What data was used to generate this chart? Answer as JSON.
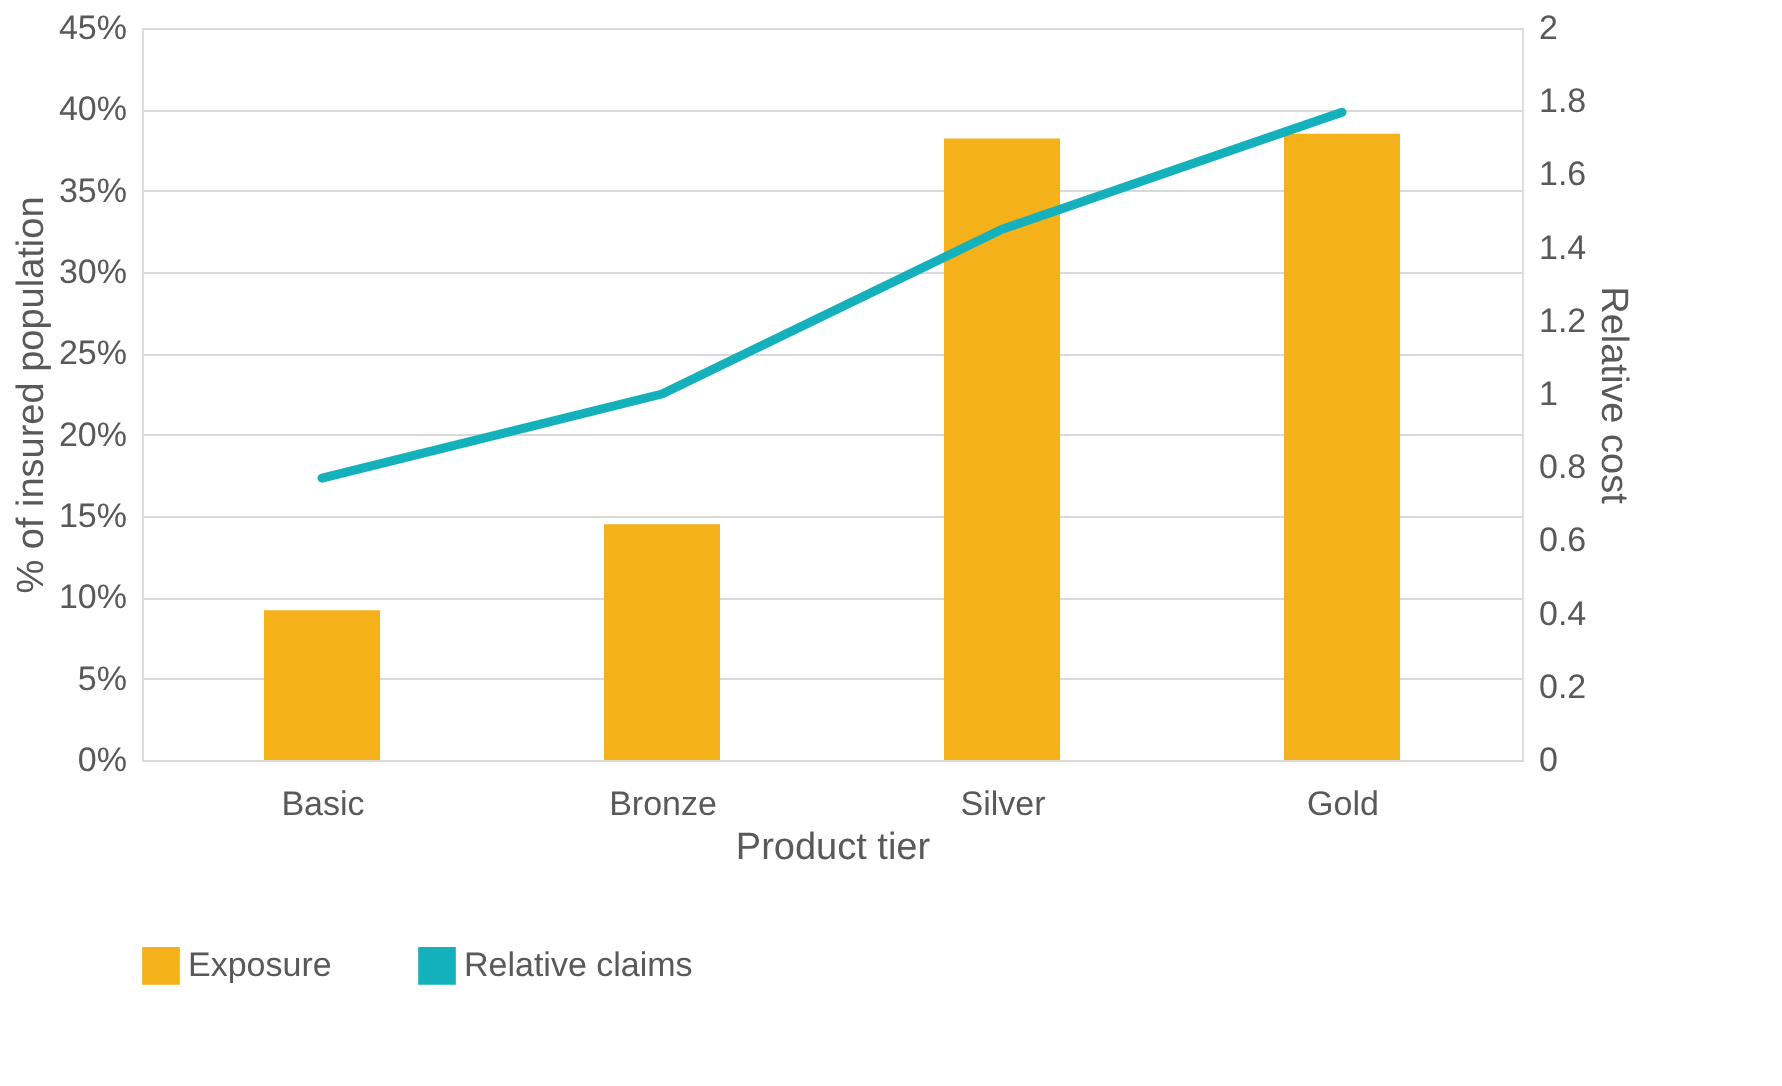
{
  "chart_data": {
    "type": "bar",
    "xlabel": "Product tier",
    "ylabel": "% of insured population",
    "y2label": "Relative cost",
    "categories": [
      "Basic",
      "Bronze",
      "Silver",
      "Gold"
    ],
    "series": [
      {
        "name": "Exposure",
        "color": "#f5b11a",
        "values": [
          9.2,
          14.5,
          38.2,
          38.5
        ]
      },
      {
        "name": "Relative claims",
        "type": "line",
        "axis": "y2",
        "color": "#14b1bd",
        "values": [
          0.77,
          1.0,
          1.45,
          1.77
        ]
      }
    ],
    "ylim": [
      0,
      45
    ],
    "yticks": [
      {
        "value": 0,
        "label": "0%"
      },
      {
        "value": 5,
        "label": "5%"
      },
      {
        "value": 10,
        "label": "10%"
      },
      {
        "value": 15,
        "label": "15%"
      },
      {
        "value": 20,
        "label": "20%"
      },
      {
        "value": 25,
        "label": "25%"
      },
      {
        "value": 30,
        "label": "30%"
      },
      {
        "value": 35,
        "label": "35%"
      },
      {
        "value": 40,
        "label": "40%"
      },
      {
        "value": 45,
        "label": "45%"
      }
    ],
    "y2lim": [
      0,
      2
    ],
    "y2ticks": [
      0,
      0.2,
      0.4,
      0.6,
      0.8,
      1,
      1.2,
      1.4,
      1.6,
      1.8,
      2
    ],
    "grid": "y",
    "legend": "bottom",
    "marker": "none",
    "line_style": "solid"
  }
}
